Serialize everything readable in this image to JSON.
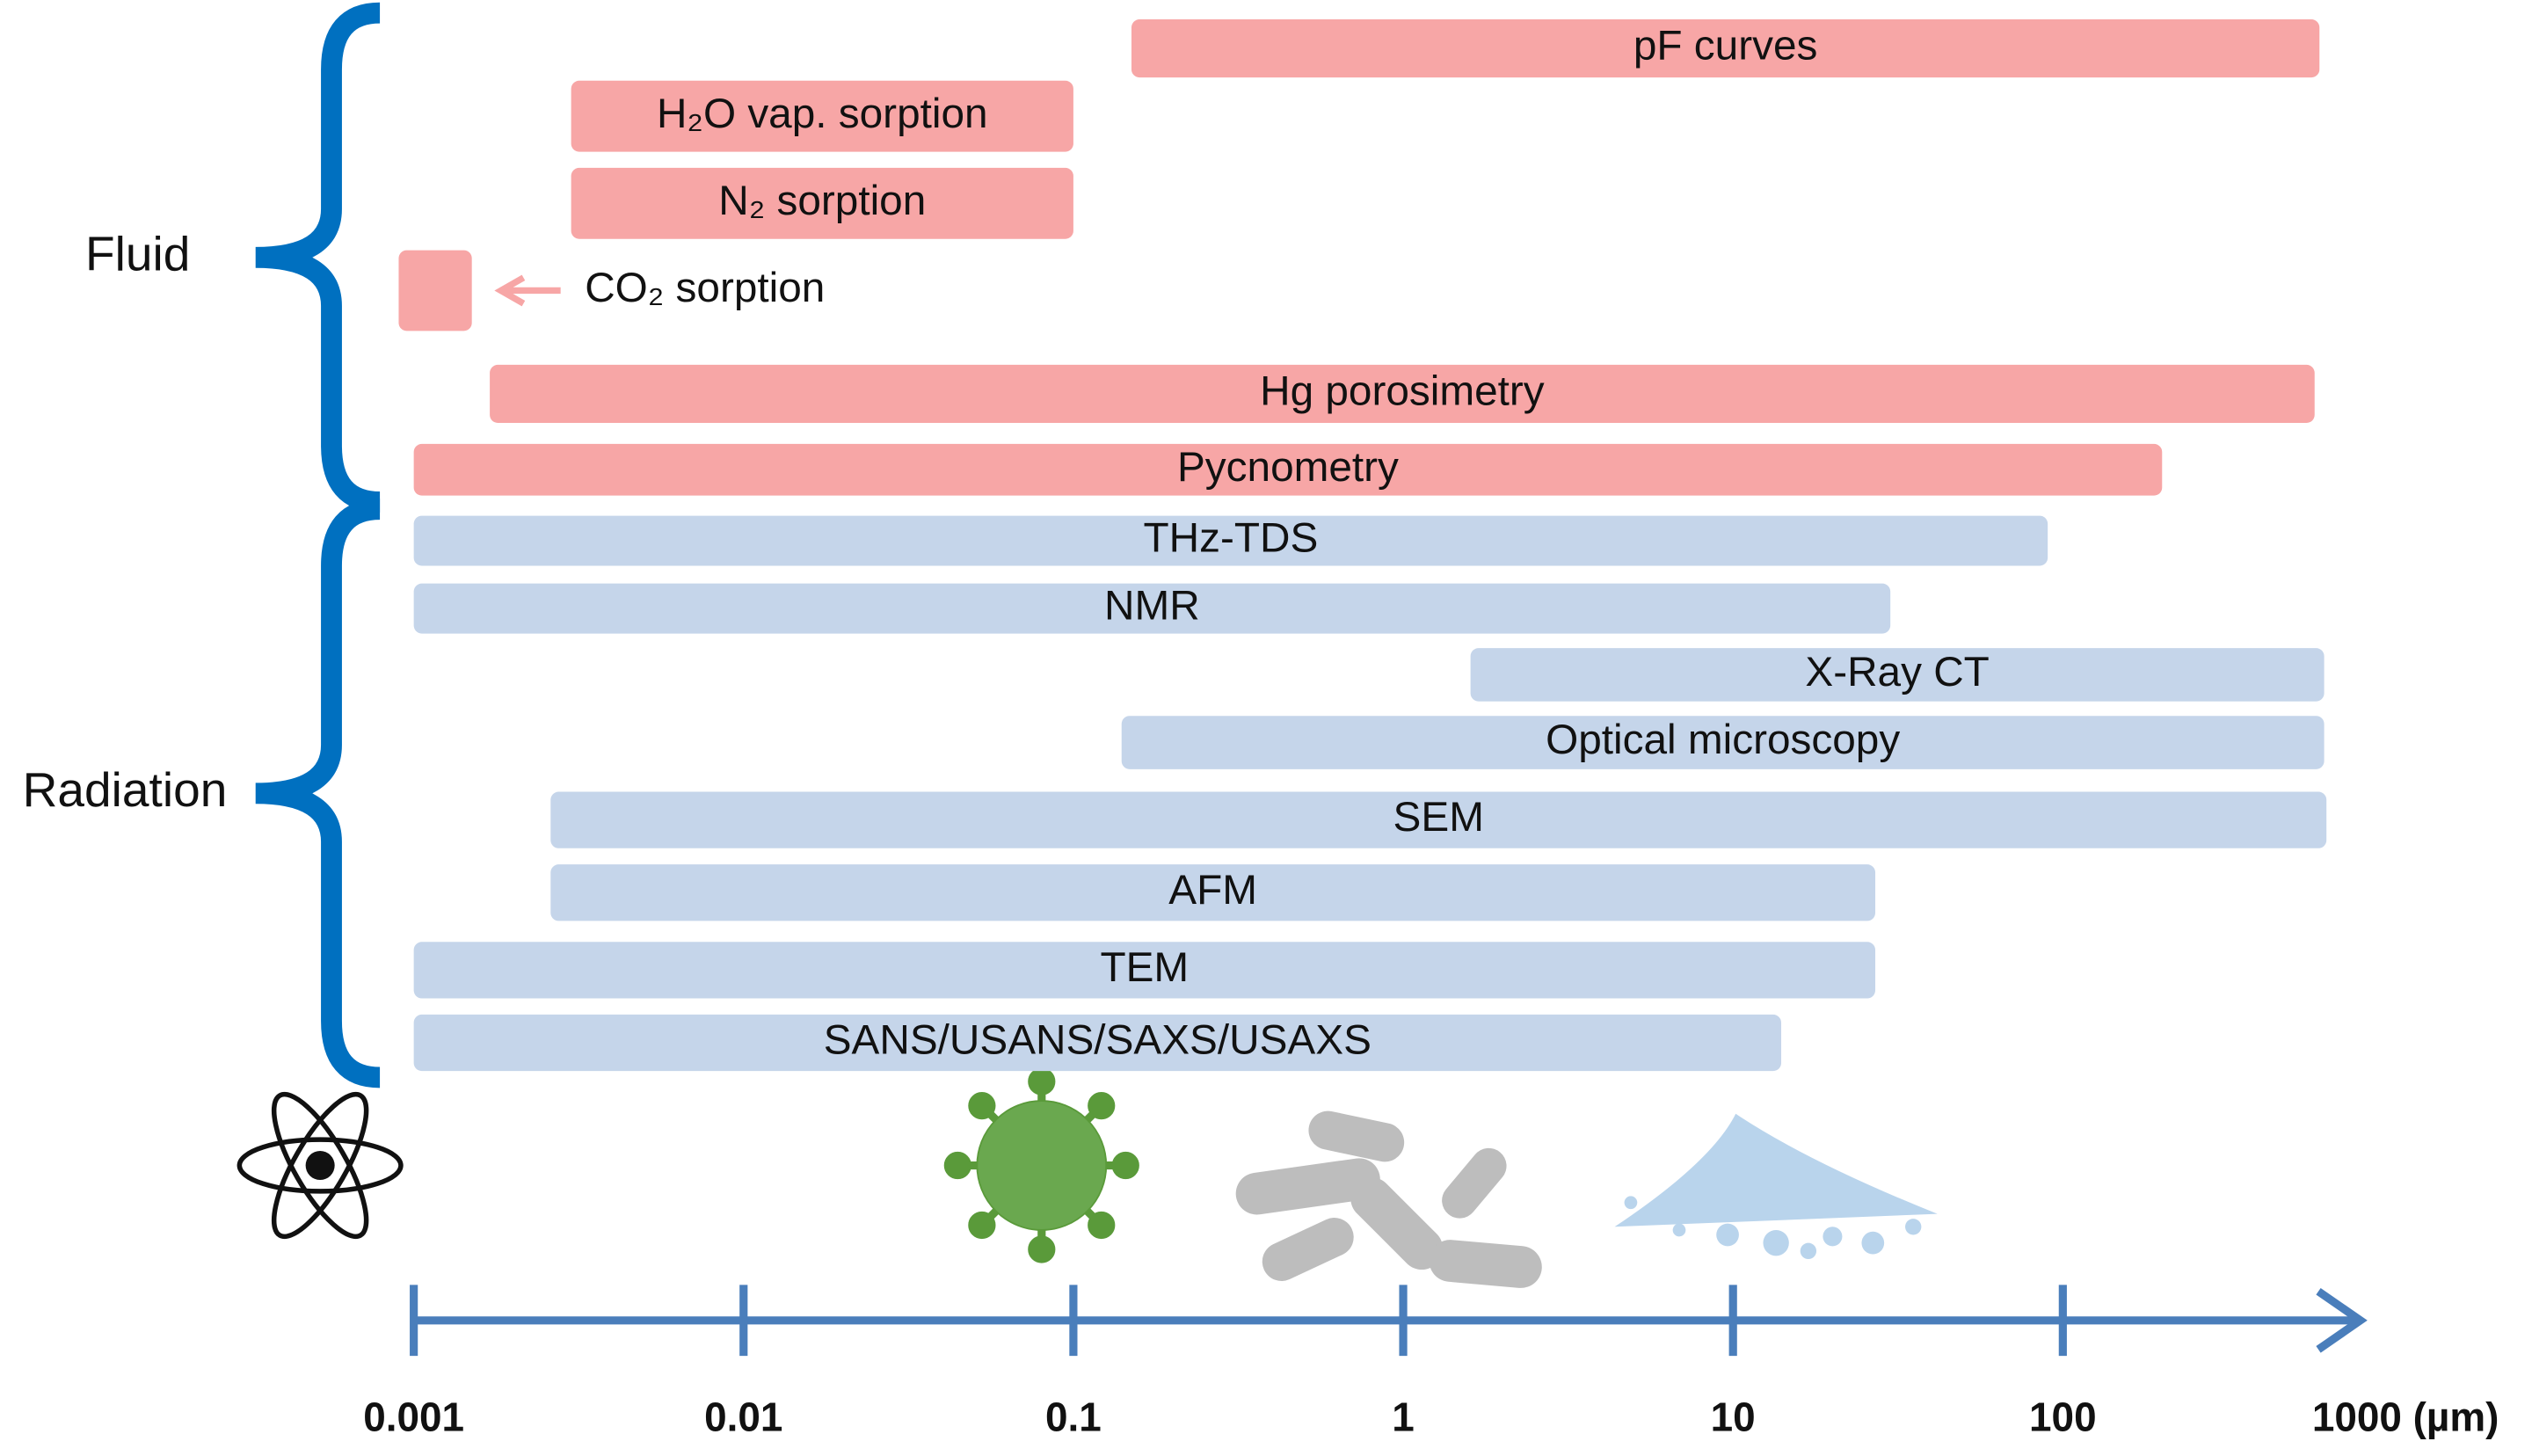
{
  "chart_data": {
    "type": "range",
    "x_scale": "log",
    "xlim": [
      0.001,
      1000
    ],
    "xticks": [
      0.001,
      0.01,
      0.1,
      1,
      10,
      100,
      {
        "value": 1000,
        "label": "1000 (µm)"
      }
    ],
    "axis_color": "#4a7ebb",
    "brace_color": "#0070c0",
    "series": [
      {
        "name": "Fluid",
        "color": "#f7a6a6",
        "bars": [
          {
            "label": "pF curves",
            "range": [
              0.15,
              600
            ]
          },
          {
            "label": "H₂O vap. sorption",
            "range": [
              0.003,
              0.1
            ]
          },
          {
            "label": "N₂ sorption",
            "range": [
              0.003,
              0.1
            ]
          },
          {
            "label": "CO₂ sorption",
            "range": [
              0.0009,
              0.0015
            ]
          },
          {
            "label": "Hg porosimetry",
            "range": [
              0.0017,
              580
            ]
          },
          {
            "label": "Pycnometry",
            "range": [
              0.001,
              200
            ]
          }
        ]
      },
      {
        "name": "Radiation",
        "color": "#c5d5ea",
        "bars": [
          {
            "label": "THz-TDS",
            "range": [
              0.001,
              90
            ]
          },
          {
            "label": "NMR",
            "range": [
              0.001,
              30
            ]
          },
          {
            "label": "X-Ray CT",
            "range": [
              1.6,
              620
            ]
          },
          {
            "label": "Optical microscopy",
            "range": [
              0.14,
              620
            ]
          },
          {
            "label": "SEM",
            "range": [
              0.0026,
              630
            ]
          },
          {
            "label": "AFM",
            "range": [
              0.0026,
              27
            ]
          },
          {
            "label": "TEM",
            "range": [
              0.001,
              27
            ]
          },
          {
            "label": "SANS/USANS/SAXS/USAXS",
            "range": [
              0.001,
              14
            ]
          }
        ]
      }
    ]
  }
}
